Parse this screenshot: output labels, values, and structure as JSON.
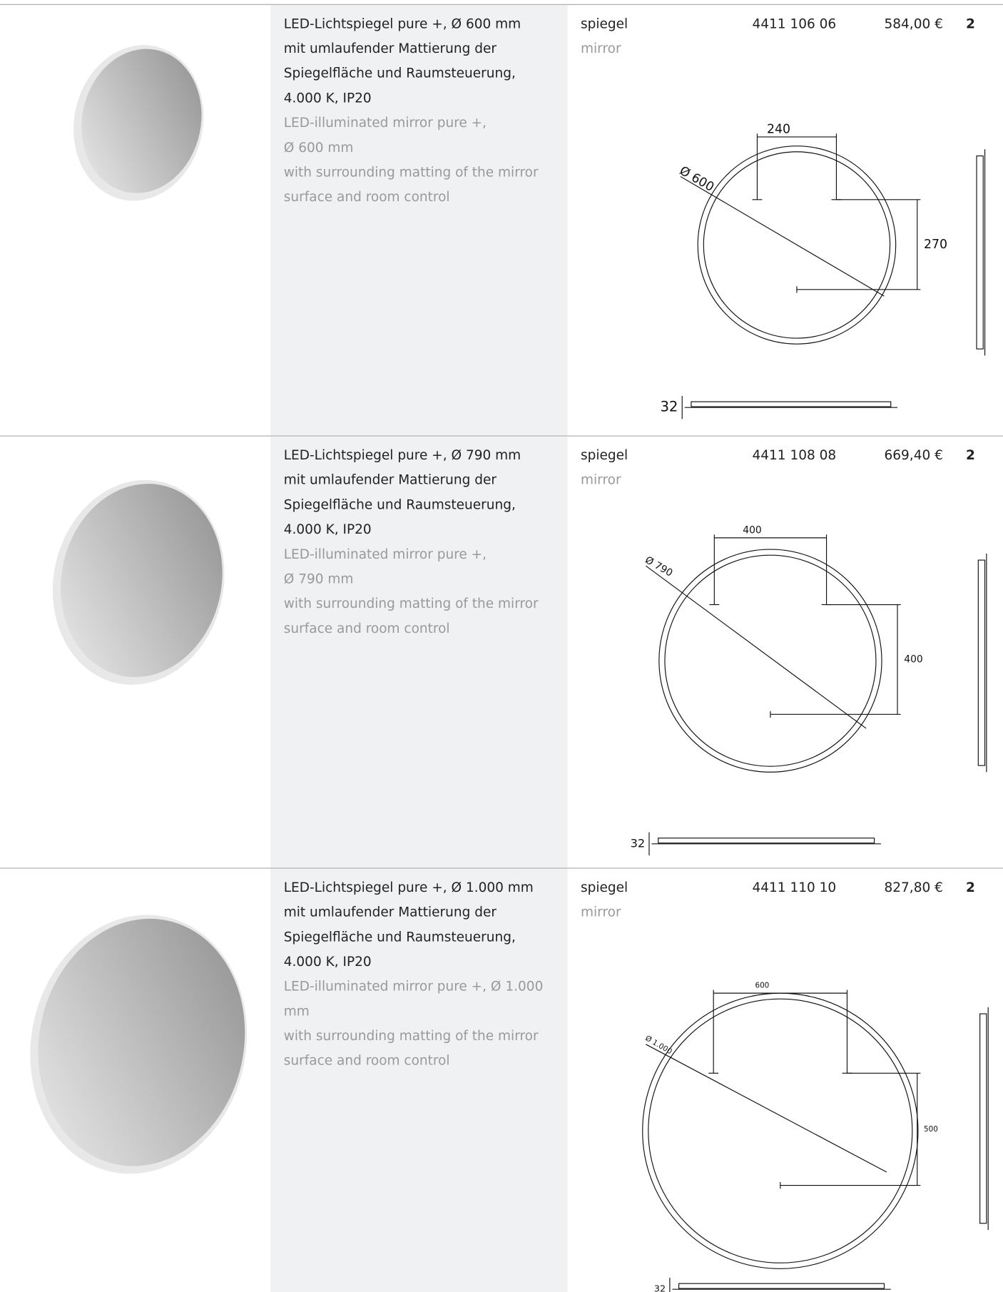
{
  "rows": [
    {
      "description_de": [
        "LED-Lichtspiegel pure +, Ø 600 mm",
        "mit umlaufender Mattierung der",
        "Spiegelfläche und Raumsteuerung,",
        "4.000 K, IP20"
      ],
      "description_en": [
        "LED-illuminated mirror pure +,",
        "Ø 600 mm",
        "with surrounding matting of the mirror",
        "surface and room control"
      ],
      "type_de": "spiegel",
      "type_en": "mirror",
      "article_no": "4411 106 06",
      "price": "584,00 €",
      "quantity": "2",
      "drawing": {
        "diameter": "Ø 600",
        "width": "240",
        "height": "270",
        "depth": "32"
      }
    },
    {
      "description_de": [
        "LED-Lichtspiegel pure +, Ø 790 mm",
        "mit umlaufender Mattierung der",
        "Spiegelfläche und Raumsteuerung,",
        "4.000 K, IP20"
      ],
      "description_en": [
        "LED-illuminated mirror pure +,",
        "Ø 790 mm",
        "with surrounding matting of the mirror",
        "surface and room control"
      ],
      "type_de": "spiegel",
      "type_en": "mirror",
      "article_no": "4411 108 08",
      "price": "669,40 €",
      "quantity": "2",
      "drawing": {
        "diameter": "Ø 790",
        "width": "400",
        "height": "400",
        "depth": "32"
      }
    },
    {
      "description_de": [
        "LED-Lichtspiegel pure +, Ø 1.000 mm",
        "mit umlaufender Mattierung der",
        "Spiegelfläche und Raumsteuerung,",
        "4.000 K, IP20"
      ],
      "description_en": [
        "LED-illuminated mirror pure +, Ø 1.000",
        "mm",
        "with surrounding matting of the mirror",
        "surface and room control"
      ],
      "type_de": "spiegel",
      "type_en": "mirror",
      "article_no": "4411 110 10",
      "price": "827,80 €",
      "quantity": "2",
      "drawing": {
        "diameter": "Ø 1.000",
        "width": "600",
        "height": "500",
        "depth": "32"
      }
    }
  ]
}
